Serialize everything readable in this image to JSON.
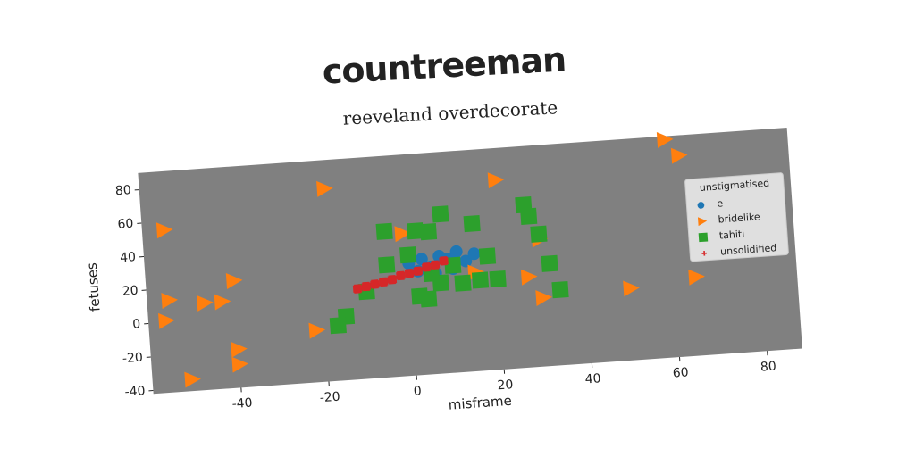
{
  "chart_data": {
    "type": "scatter",
    "title": "countreeman",
    "subtitle": "reeveland overdecorate",
    "x_label": "misframe",
    "y_label": "fetuses",
    "legend_title": "unstigmatised",
    "legend_position": "upper right",
    "xlim": [
      -60,
      88
    ],
    "ylim": [
      -42,
      90
    ],
    "xticks": [
      -40,
      -20,
      0,
      20,
      40,
      60,
      80
    ],
    "yticks": [
      -40,
      -20,
      0,
      20,
      40,
      60,
      80
    ],
    "series": [
      {
        "name": "e",
        "color": "#1f77b4",
        "marker": "circle",
        "x": [
          0,
          3,
          5,
          7,
          9,
          10,
          11,
          13,
          15,
          6,
          2
        ],
        "values": [
          25,
          27,
          22,
          28,
          26,
          20,
          30,
          24,
          28,
          18,
          20
        ]
      },
      {
        "name": "bridelike",
        "color": "#ff7f0e",
        "marker": "triangle",
        "x": [
          -55,
          -18,
          21,
          60,
          63,
          -1,
          -55,
          -56,
          -47,
          -43,
          -40,
          -22,
          -40,
          -40,
          -51,
          15,
          27,
          30,
          50,
          65,
          30
        ],
        "values": [
          55,
          73,
          71,
          88,
          78,
          43,
          13,
          1,
          10,
          10,
          22,
          -11,
          -19,
          -28,
          -35,
          17,
          12,
          -1,
          1,
          5,
          34
        ]
      },
      {
        "name": "tahiti",
        "color": "#2ca02c",
        "marker": "square",
        "x": [
          -5,
          -5,
          0,
          2,
          5,
          8,
          10,
          15,
          18,
          27,
          28,
          30,
          32,
          34,
          4,
          5,
          12,
          16,
          20,
          -10,
          -15,
          -17,
          2,
          7
        ],
        "values": [
          45,
          25,
          30,
          44,
          43,
          53,
          22,
          46,
          26,
          55,
          48,
          37,
          19,
          3,
          3,
          18,
          11,
          12,
          12,
          10,
          -4,
          -9,
          5,
          12
        ]
      },
      {
        "name": "unsolidified",
        "color": "#d62728",
        "marker": "plus",
        "x": [
          -12,
          -10,
          -8,
          -6,
          -4,
          -2,
          0,
          2,
          4,
          6,
          8
        ],
        "values": [
          12,
          13,
          14,
          15,
          16,
          18,
          19,
          20,
          22,
          23,
          25
        ]
      }
    ]
  }
}
